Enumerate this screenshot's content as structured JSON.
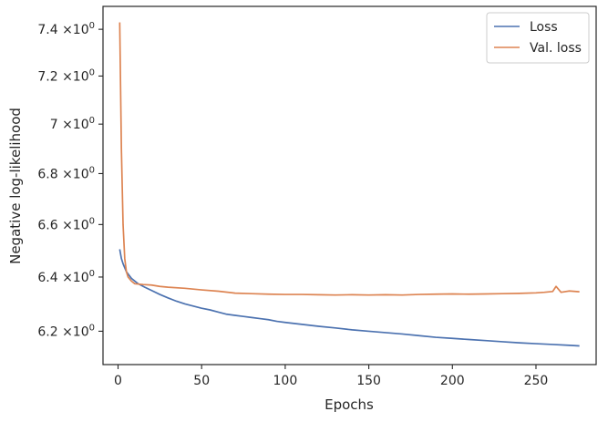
{
  "chart_data": {
    "type": "line",
    "xlabel": "Epochs",
    "ylabel": "Negative log-likelihood",
    "xlim": [
      -9,
      286
    ],
    "ylim": [
      6.08,
      7.5
    ],
    "y_scale": "log",
    "grid": false,
    "legend_position": "top-right",
    "x_ticks": [
      0,
      50,
      100,
      150,
      200,
      250
    ],
    "x_tick_labels": [
      "0",
      "50",
      "100",
      "150",
      "200",
      "250"
    ],
    "y_ticks": [
      6.2,
      6.4,
      6.6,
      6.8,
      7.0,
      7.2,
      7.4
    ],
    "y_tick_labels": [
      "6.2",
      "6.4",
      "6.6",
      "6.8",
      "7",
      "7.2",
      "7.4"
    ],
    "y_tick_base": "×10",
    "y_tick_exponent": "0",
    "series": [
      {
        "name": "Loss",
        "color": "#4c72b0",
        "x": [
          1,
          2,
          3,
          5,
          8,
          12,
          16,
          20,
          25,
          30,
          35,
          40,
          45,
          50,
          55,
          60,
          65,
          70,
          75,
          80,
          85,
          90,
          95,
          100,
          110,
          120,
          130,
          140,
          150,
          160,
          170,
          180,
          190,
          200,
          210,
          220,
          230,
          240,
          250,
          260,
          270,
          276
        ],
        "y": [
          6.505,
          6.47,
          6.45,
          6.42,
          6.395,
          6.375,
          6.362,
          6.35,
          6.335,
          6.322,
          6.31,
          6.3,
          6.292,
          6.284,
          6.278,
          6.27,
          6.262,
          6.258,
          6.254,
          6.25,
          6.246,
          6.242,
          6.236,
          6.232,
          6.225,
          6.218,
          6.212,
          6.205,
          6.2,
          6.195,
          6.19,
          6.184,
          6.178,
          6.174,
          6.17,
          6.166,
          6.162,
          6.158,
          6.155,
          6.152,
          6.149,
          6.147
        ]
      },
      {
        "name": "Val. loss",
        "color": "#dd8452",
        "x": [
          1,
          2,
          3,
          4,
          5,
          6,
          8,
          10,
          15,
          20,
          25,
          30,
          40,
          50,
          60,
          70,
          80,
          90,
          100,
          110,
          120,
          130,
          140,
          150,
          160,
          170,
          180,
          190,
          200,
          210,
          220,
          230,
          240,
          250,
          255,
          260,
          262,
          265,
          270,
          276
        ],
        "y": [
          7.43,
          6.9,
          6.6,
          6.47,
          6.42,
          6.4,
          6.385,
          6.375,
          6.372,
          6.37,
          6.365,
          6.362,
          6.358,
          6.352,
          6.347,
          6.34,
          6.338,
          6.336,
          6.335,
          6.335,
          6.334,
          6.333,
          6.334,
          6.333,
          6.334,
          6.333,
          6.335,
          6.336,
          6.337,
          6.336,
          6.337,
          6.338,
          6.339,
          6.341,
          6.343,
          6.346,
          6.365,
          6.343,
          6.348,
          6.345
        ]
      }
    ]
  }
}
